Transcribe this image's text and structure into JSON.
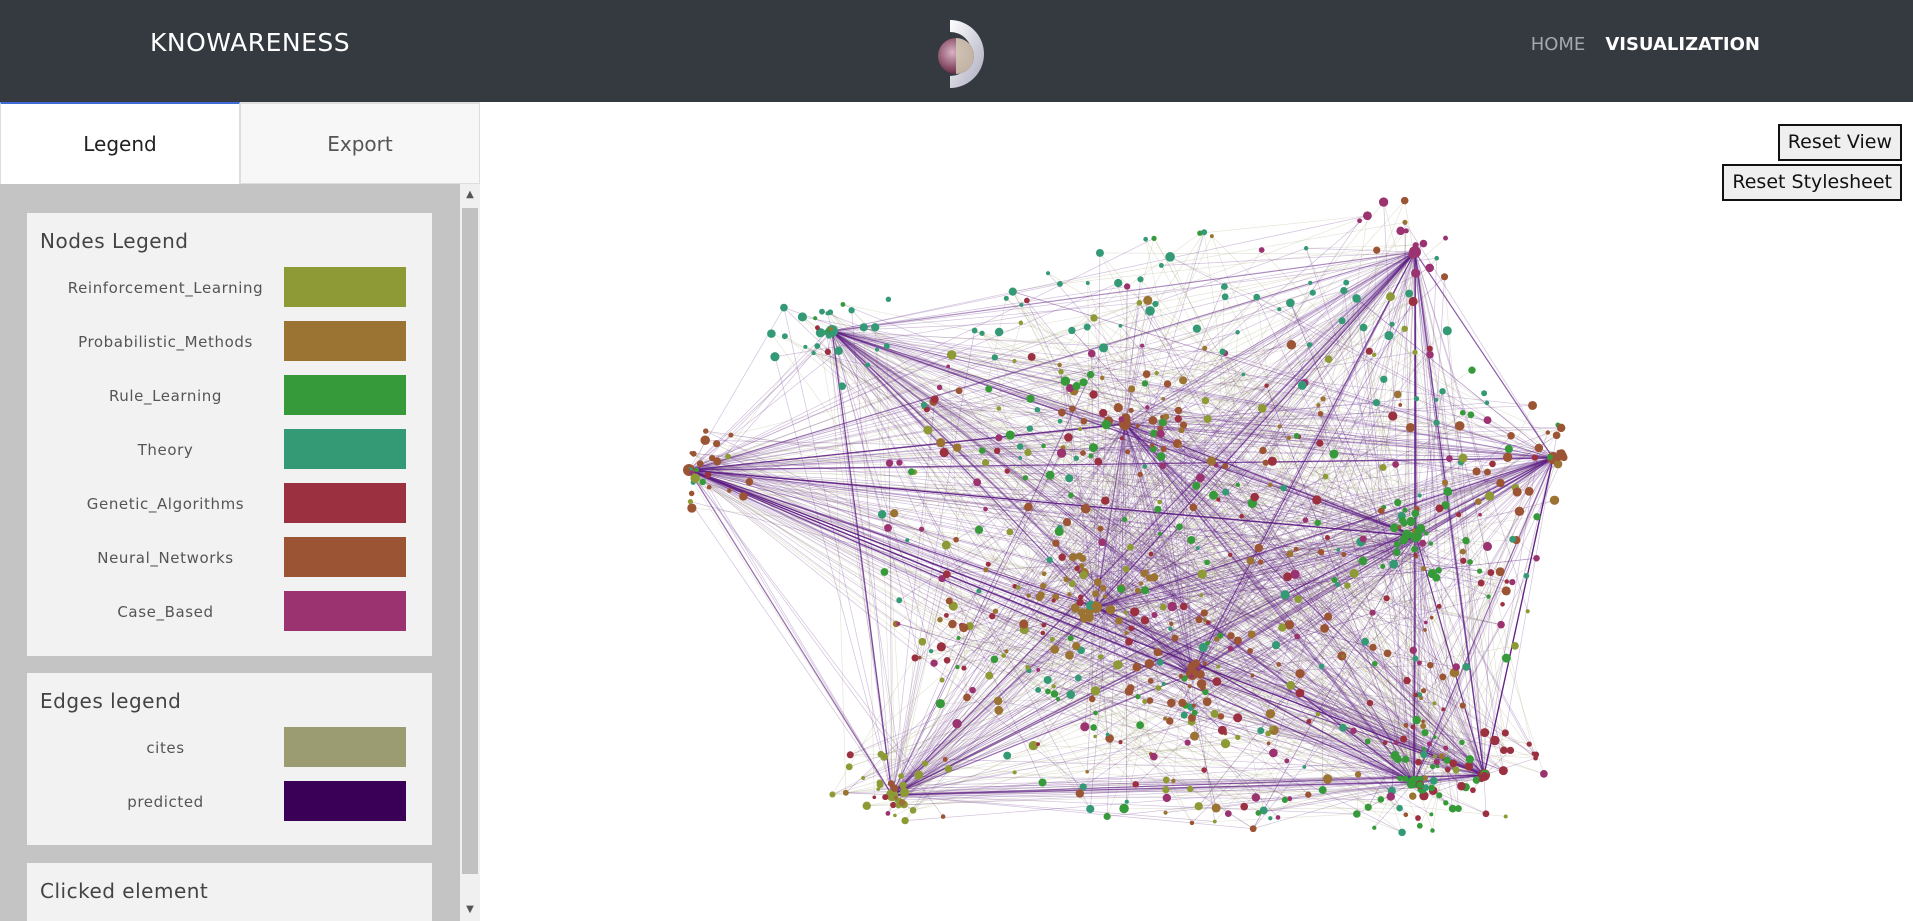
{
  "navbar": {
    "brand": "KNOWARENESS",
    "links": [
      {
        "label": "HOME",
        "active": false
      },
      {
        "label": "VISUALIZATION",
        "active": true
      }
    ]
  },
  "tabs": [
    {
      "label": "Legend",
      "active": true
    },
    {
      "label": "Export",
      "active": false
    }
  ],
  "nodes_legend": {
    "title": "Nodes Legend",
    "items": [
      {
        "label": "Reinforcement_Learning",
        "color": "#8d9a36"
      },
      {
        "label": "Probabilistic_Methods",
        "color": "#9b7434"
      },
      {
        "label": "Rule_Learning",
        "color": "#379a3a"
      },
      {
        "label": "Theory",
        "color": "#349a76"
      },
      {
        "label": "Genetic_Algorithms",
        "color": "#9b3040"
      },
      {
        "label": "Neural_Networks",
        "color": "#9b5434"
      },
      {
        "label": "Case_Based",
        "color": "#9b3370"
      }
    ]
  },
  "edges_legend": {
    "title": "Edges legend",
    "items": [
      {
        "label": "cites",
        "color": "#9b9c71"
      },
      {
        "label": "predicted",
        "color": "#3a0058"
      }
    ]
  },
  "clicked_element": {
    "title": "Clicked element"
  },
  "graph": {
    "reset_view_label": "Reset View",
    "reset_stylesheet_label": "Reset Stylesheet",
    "predicted_edge_color": "#5e1f85",
    "cites_edge_color": "#a9aa84"
  }
}
